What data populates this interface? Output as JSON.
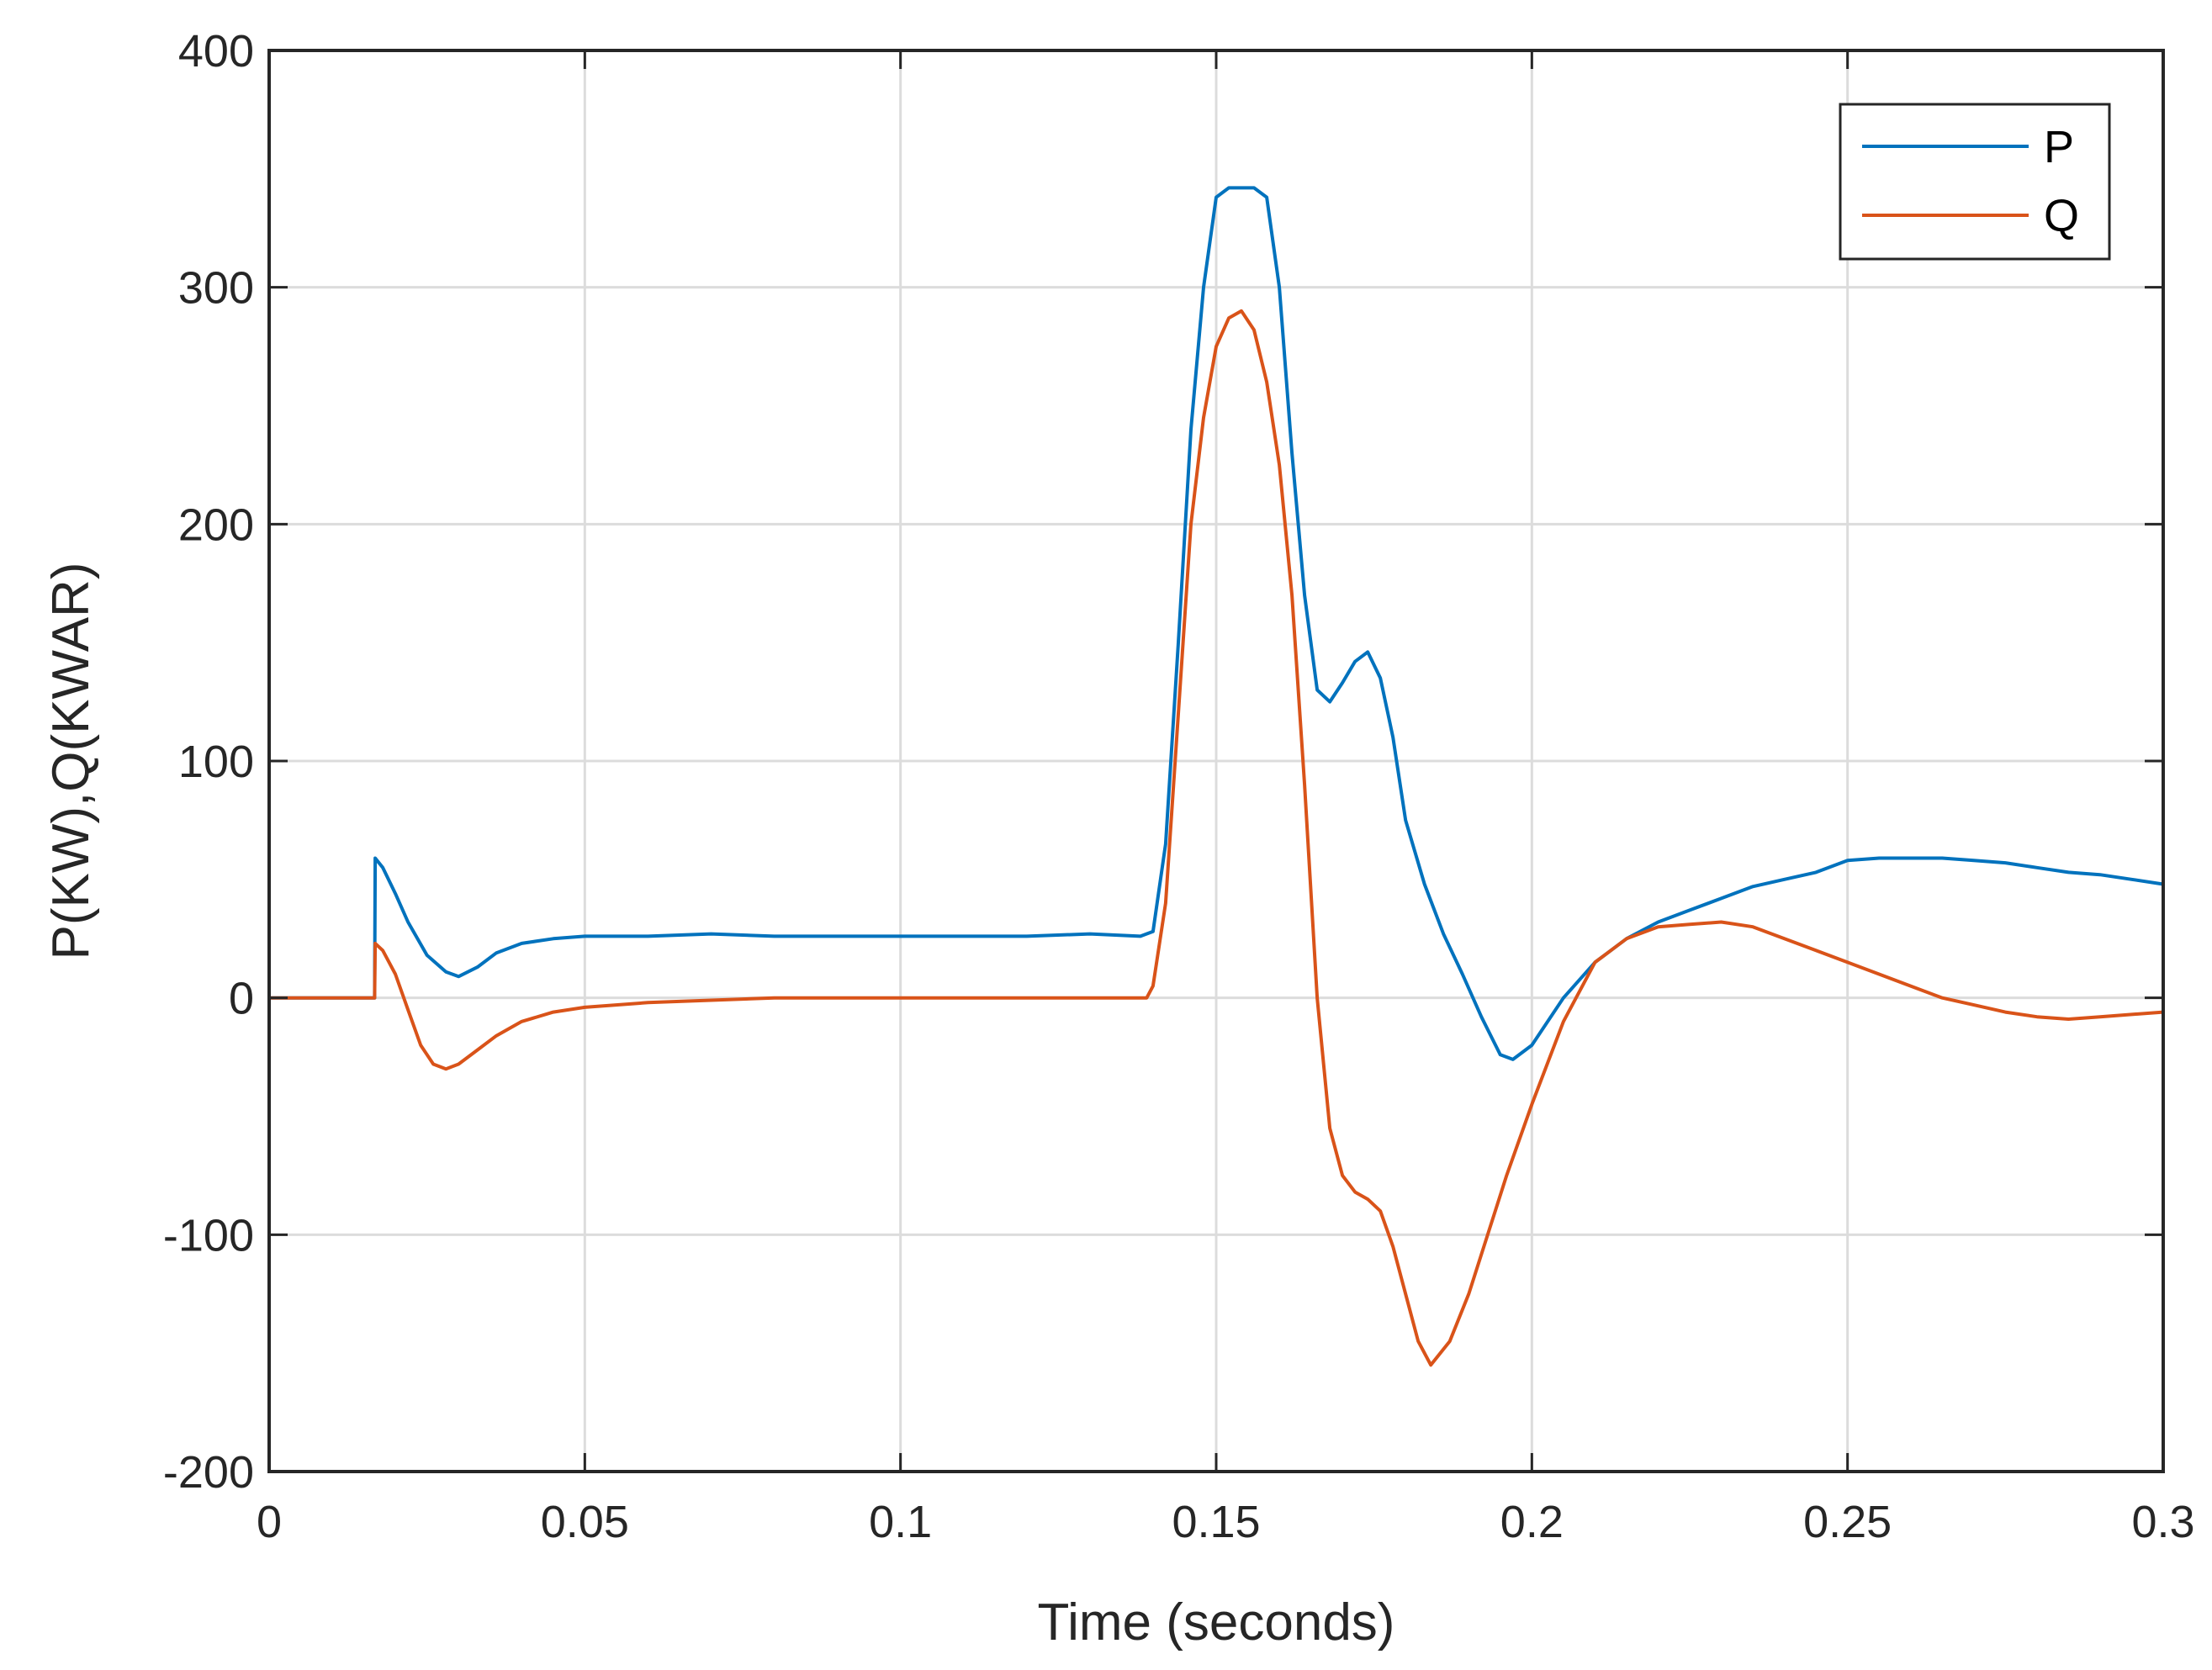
{
  "chart_data": {
    "type": "line",
    "title": "",
    "xlabel": "Time (seconds)",
    "ylabel": "P(KW),Q(KWAR)",
    "xlim": [
      0,
      0.3
    ],
    "ylim": [
      -200,
      400
    ],
    "xticks": [
      0,
      0.05,
      0.1,
      0.15,
      0.2,
      0.25,
      0.3
    ],
    "xtick_labels": [
      "0",
      "0.05",
      "0.1",
      "0.15",
      "0.2",
      "0.25",
      "0.3"
    ],
    "yticks": [
      -200,
      -100,
      0,
      100,
      200,
      300,
      400
    ],
    "ytick_labels": [
      "-200",
      "-100",
      "0",
      "100",
      "200",
      "300",
      "400"
    ],
    "grid": true,
    "legend": "top-right",
    "series": [
      {
        "name": "P",
        "color": "#0072BD",
        "x": [
          0,
          0.0167,
          0.0168,
          0.018,
          0.02,
          0.022,
          0.025,
          0.028,
          0.03,
          0.033,
          0.036,
          0.04,
          0.045,
          0.05,
          0.06,
          0.07,
          0.08,
          0.09,
          0.1,
          0.11,
          0.12,
          0.13,
          0.138,
          0.14,
          0.142,
          0.144,
          0.146,
          0.148,
          0.15,
          0.152,
          0.154,
          0.156,
          0.158,
          0.16,
          0.162,
          0.164,
          0.166,
          0.168,
          0.17,
          0.172,
          0.174,
          0.176,
          0.178,
          0.18,
          0.183,
          0.186,
          0.189,
          0.192,
          0.195,
          0.197,
          0.2,
          0.205,
          0.21,
          0.215,
          0.22,
          0.225,
          0.23,
          0.235,
          0.24,
          0.245,
          0.25,
          0.255,
          0.26,
          0.265,
          0.27,
          0.275,
          0.28,
          0.285,
          0.29,
          0.295,
          0.3
        ],
        "values": [
          0,
          0,
          59,
          55,
          44,
          32,
          18,
          11,
          9,
          13,
          19,
          23,
          25,
          26,
          26,
          27,
          26,
          26,
          26,
          26,
          26,
          27,
          26,
          28,
          65,
          150,
          240,
          300,
          338,
          342,
          342,
          342,
          338,
          300,
          230,
          170,
          130,
          125,
          133,
          142,
          146,
          135,
          110,
          75,
          48,
          27,
          10,
          -8,
          -24,
          -26,
          -20,
          0,
          15,
          25,
          32,
          37,
          42,
          47,
          50,
          53,
          58,
          59,
          59,
          59,
          58,
          57,
          55,
          53,
          52,
          50,
          48
        ]
      },
      {
        "name": "Q",
        "color": "#D95319",
        "x": [
          0,
          0.0167,
          0.0168,
          0.018,
          0.02,
          0.022,
          0.024,
          0.026,
          0.028,
          0.03,
          0.033,
          0.036,
          0.04,
          0.045,
          0.05,
          0.06,
          0.07,
          0.08,
          0.09,
          0.1,
          0.12,
          0.139,
          0.14,
          0.142,
          0.144,
          0.146,
          0.148,
          0.15,
          0.152,
          0.154,
          0.156,
          0.158,
          0.16,
          0.162,
          0.164,
          0.166,
          0.168,
          0.17,
          0.172,
          0.174,
          0.176,
          0.178,
          0.18,
          0.182,
          0.184,
          0.187,
          0.19,
          0.193,
          0.196,
          0.2,
          0.205,
          0.21,
          0.215,
          0.22,
          0.225,
          0.23,
          0.235,
          0.24,
          0.245,
          0.25,
          0.255,
          0.26,
          0.265,
          0.27,
          0.275,
          0.28,
          0.285,
          0.29,
          0.295,
          0.3
        ],
        "values": [
          0,
          0,
          23,
          20,
          10,
          -5,
          -20,
          -28,
          -30,
          -28,
          -22,
          -16,
          -10,
          -6,
          -4,
          -2,
          -1,
          0,
          0,
          0,
          0,
          0,
          5,
          40,
          120,
          200,
          245,
          275,
          287,
          290,
          282,
          260,
          225,
          170,
          90,
          0,
          -55,
          -75,
          -82,
          -85,
          -90,
          -105,
          -125,
          -145,
          -155,
          -145,
          -125,
          -100,
          -75,
          -45,
          -10,
          15,
          25,
          30,
          31,
          32,
          30,
          25,
          20,
          15,
          10,
          5,
          0,
          -3,
          -6,
          -8,
          -9,
          -8,
          -7,
          -6
        ]
      }
    ]
  }
}
